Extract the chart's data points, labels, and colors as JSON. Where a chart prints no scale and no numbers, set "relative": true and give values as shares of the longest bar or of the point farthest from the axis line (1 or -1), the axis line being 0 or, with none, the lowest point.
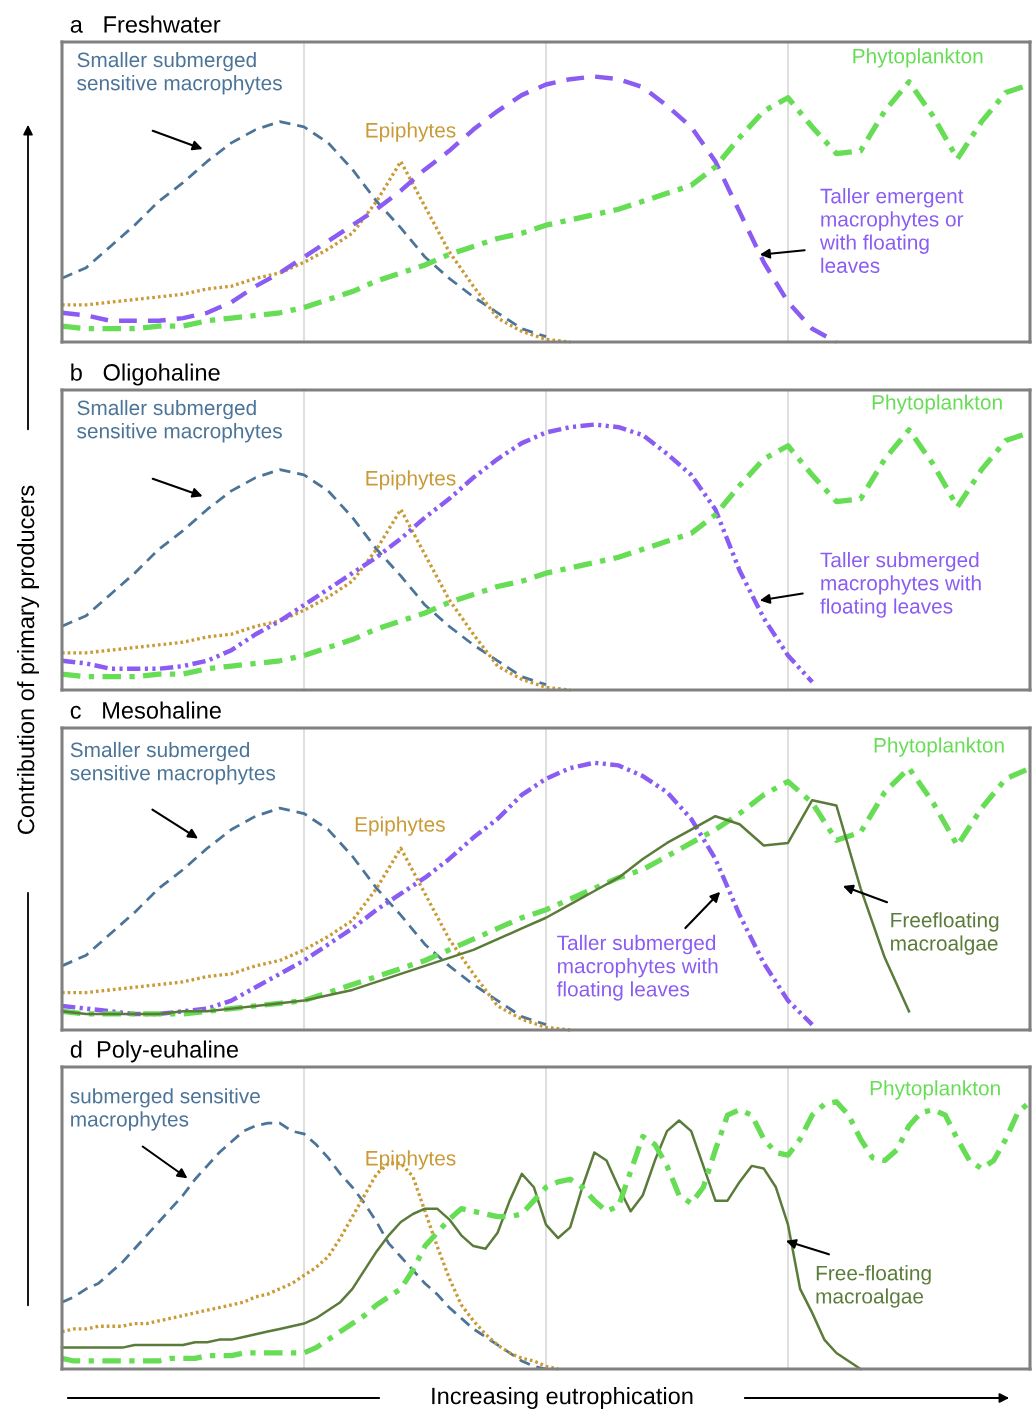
{
  "chart_data": [
    {
      "type": "line",
      "title": "a   Freshwater",
      "relative": true,
      "grid": "x",
      "tick_labels": false,
      "legend": false,
      "categories": [
        null,
        null,
        null,
        null,
        null,
        null,
        null,
        null,
        null,
        null,
        null,
        null,
        null,
        null,
        null,
        null,
        null,
        null,
        null,
        null,
        null,
        null,
        null,
        null,
        null,
        null,
        null,
        null,
        null,
        null,
        null,
        null,
        null,
        null,
        null,
        null,
        null,
        null,
        null,
        null,
        null
      ],
      "series": [
        {
          "name": "Smaller submerged\nsensitive macrophytes",
          "color": "#4b7498",
          "line_style": "dashed",
          "values": [
            0.24,
            0.28,
            0.36,
            0.44,
            0.53,
            0.6,
            0.68,
            0.75,
            0.8,
            0.83,
            0.81,
            0.75,
            0.65,
            0.53,
            0.43,
            0.32,
            0.24,
            0.17,
            0.11,
            0.05,
            0.02,
            null,
            null,
            null,
            null,
            null,
            null,
            null,
            null,
            null,
            null,
            null,
            null,
            null,
            null,
            null,
            null,
            null,
            null,
            null,
            null
          ]
        },
        {
          "name": "Epiphytes",
          "color": "#c99a35",
          "line_style": "dotted",
          "values": [
            0.14,
            0.14,
            0.15,
            0.16,
            0.17,
            0.18,
            0.2,
            0.21,
            0.24,
            0.26,
            0.3,
            0.35,
            0.41,
            0.53,
            0.68,
            0.51,
            0.34,
            0.21,
            0.09,
            0.04,
            0.01,
            0,
            null,
            null,
            null,
            null,
            null,
            null,
            null,
            null,
            null,
            null,
            null,
            null,
            null,
            null,
            null,
            null,
            null,
            null,
            null
          ]
        },
        {
          "name": "Taller emergent\nmacrophytes or\nwith floating\nleaves",
          "color": "#8a5cf2",
          "line_style": "dashed",
          "values": [
            0.11,
            0.1,
            0.08,
            0.08,
            0.08,
            0.09,
            0.11,
            0.15,
            0.21,
            0.26,
            0.32,
            0.38,
            0.44,
            0.5,
            0.57,
            0.65,
            0.72,
            0.8,
            0.87,
            0.93,
            0.97,
            0.99,
            1,
            0.99,
            0.96,
            0.89,
            0.81,
            0.68,
            0.49,
            0.3,
            0.15,
            0.05,
            0,
            null,
            null,
            null,
            null,
            null,
            null,
            null,
            null
          ]
        },
        {
          "name": "Phytoplankton",
          "color": "#66dd55",
          "line_style": "dashdot",
          "values": [
            0.06,
            0.05,
            0.05,
            0.05,
            0.06,
            0.06,
            0.08,
            0.09,
            0.1,
            0.11,
            0.13,
            0.16,
            0.19,
            0.23,
            0.26,
            0.29,
            0.33,
            0.36,
            0.39,
            0.41,
            0.44,
            0.46,
            0.48,
            0.5,
            0.53,
            0.56,
            0.59,
            0.66,
            0.77,
            0.87,
            0.92,
            0.81,
            0.71,
            0.72,
            0.87,
            0.98,
            0.85,
            0.69,
            0.83,
            0.94,
            0.97
          ]
        }
      ]
    },
    {
      "type": "line",
      "title": "b   Oligohaline",
      "ylabel": "Contribution of primary producers",
      "relative": true,
      "grid": "x",
      "tick_labels": false,
      "legend": false,
      "categories": [
        null,
        null,
        null,
        null,
        null,
        null,
        null,
        null,
        null,
        null,
        null,
        null,
        null,
        null,
        null,
        null,
        null,
        null,
        null,
        null,
        null,
        null,
        null,
        null,
        null,
        null,
        null,
        null,
        null,
        null,
        null,
        null,
        null,
        null,
        null,
        null,
        null,
        null,
        null,
        null,
        null
      ],
      "series": [
        {
          "name": "Smaller submerged\nsensitive macrophytes",
          "color": "#4b7498",
          "line_style": "dashed",
          "values": [
            0.24,
            0.28,
            0.36,
            0.44,
            0.53,
            0.6,
            0.68,
            0.75,
            0.8,
            0.83,
            0.81,
            0.75,
            0.65,
            0.53,
            0.43,
            0.32,
            0.24,
            0.17,
            0.11,
            0.05,
            0.02,
            null,
            null,
            null,
            null,
            null,
            null,
            null,
            null,
            null,
            null,
            null,
            null,
            null,
            null,
            null,
            null,
            null,
            null,
            null,
            null
          ]
        },
        {
          "name": "Epiphytes",
          "color": "#c99a35",
          "line_style": "dotted",
          "values": [
            0.14,
            0.14,
            0.15,
            0.16,
            0.17,
            0.18,
            0.2,
            0.21,
            0.24,
            0.26,
            0.3,
            0.35,
            0.41,
            0.53,
            0.68,
            0.51,
            0.34,
            0.21,
            0.09,
            0.04,
            0.01,
            0,
            null,
            null,
            null,
            null,
            null,
            null,
            null,
            null,
            null,
            null,
            null,
            null,
            null,
            null,
            null,
            null,
            null,
            null,
            null
          ]
        },
        {
          "name": "Taller submerged\nmacrophytes with\nfloating leaves",
          "color": "#8a5cf2",
          "line_style": "dashdotdot",
          "values": [
            0.11,
            0.1,
            0.08,
            0.08,
            0.08,
            0.09,
            0.11,
            0.15,
            0.21,
            0.26,
            0.32,
            0.38,
            0.44,
            0.5,
            0.57,
            0.65,
            0.72,
            0.8,
            0.87,
            0.93,
            0.97,
            0.99,
            1,
            0.99,
            0.96,
            0.89,
            0.81,
            0.68,
            0.45,
            0.27,
            0.13,
            0.03,
            null,
            null,
            null,
            null,
            null,
            null,
            null,
            null,
            null
          ]
        },
        {
          "name": "Phytoplankton",
          "color": "#66dd55",
          "line_style": "dashdot",
          "values": [
            0.06,
            0.05,
            0.05,
            0.05,
            0.06,
            0.06,
            0.08,
            0.09,
            0.1,
            0.11,
            0.13,
            0.16,
            0.19,
            0.23,
            0.26,
            0.29,
            0.33,
            0.36,
            0.39,
            0.41,
            0.44,
            0.46,
            0.48,
            0.5,
            0.53,
            0.56,
            0.59,
            0.66,
            0.77,
            0.87,
            0.92,
            0.81,
            0.71,
            0.72,
            0.87,
            0.98,
            0.85,
            0.69,
            0.83,
            0.94,
            0.97
          ]
        }
      ]
    },
    {
      "type": "line",
      "title": "c   Mesohaline",
      "relative": true,
      "grid": "x",
      "tick_labels": false,
      "legend": false,
      "categories": [
        null,
        null,
        null,
        null,
        null,
        null,
        null,
        null,
        null,
        null,
        null,
        null,
        null,
        null,
        null,
        null,
        null,
        null,
        null,
        null,
        null,
        null,
        null,
        null,
        null,
        null,
        null,
        null,
        null,
        null,
        null,
        null,
        null,
        null,
        null,
        null,
        null,
        null,
        null,
        null,
        null
      ],
      "series": [
        {
          "name": "Smaller submerged\nsensitive macrophytes",
          "color": "#4b7498",
          "line_style": "dashed",
          "values": [
            0.24,
            0.28,
            0.36,
            0.44,
            0.53,
            0.6,
            0.68,
            0.75,
            0.8,
            0.83,
            0.81,
            0.75,
            0.65,
            0.53,
            0.43,
            0.32,
            0.24,
            0.17,
            0.11,
            0.05,
            0.02,
            null,
            null,
            null,
            null,
            null,
            null,
            null,
            null,
            null,
            null,
            null,
            null,
            null,
            null,
            null,
            null,
            null,
            null,
            null,
            null
          ]
        },
        {
          "name": "Epiphytes",
          "color": "#c99a35",
          "line_style": "dotted",
          "values": [
            0.14,
            0.14,
            0.15,
            0.16,
            0.17,
            0.18,
            0.2,
            0.21,
            0.24,
            0.26,
            0.3,
            0.35,
            0.41,
            0.53,
            0.68,
            0.51,
            0.34,
            0.21,
            0.09,
            0.04,
            0.01,
            0,
            null,
            null,
            null,
            null,
            null,
            null,
            null,
            null,
            null,
            null,
            null,
            null,
            null,
            null,
            null,
            null,
            null,
            null,
            null
          ]
        },
        {
          "name": "Taller submerged\nmacrophytes with\nfloating leaves",
          "color": "#8a5cf2",
          "line_style": "dashdotdot",
          "values": [
            0.09,
            0.08,
            0.07,
            0.06,
            0.06,
            0.07,
            0.08,
            0.11,
            0.16,
            0.21,
            0.26,
            0.32,
            0.38,
            0.45,
            0.51,
            0.57,
            0.64,
            0.72,
            0.79,
            0.88,
            0.94,
            0.98,
            1,
            0.99,
            0.95,
            0.89,
            0.79,
            0.64,
            0.43,
            0.25,
            0.11,
            0.02,
            null,
            null,
            null,
            null,
            null,
            null,
            null,
            null,
            null
          ]
        },
        {
          "name": "Phytoplankton",
          "color": "#66dd55",
          "line_style": "dashdot",
          "values": [
            0.07,
            0.06,
            0.06,
            0.06,
            0.06,
            0.06,
            0.07,
            0.08,
            0.09,
            0.1,
            0.11,
            0.14,
            0.17,
            0.2,
            0.23,
            0.26,
            0.3,
            0.34,
            0.38,
            0.42,
            0.45,
            0.49,
            0.53,
            0.57,
            0.6,
            0.65,
            0.7,
            0.75,
            0.81,
            0.88,
            0.93,
            0.85,
            0.71,
            0.74,
            0.89,
            0.98,
            0.85,
            0.69,
            0.83,
            0.94,
            0.98
          ]
        },
        {
          "name": "Freefloating\nmacroalgae",
          "color": "#5b7b3a",
          "line_style": "solid",
          "values": [
            0.07,
            0.06,
            0.06,
            0.06,
            0.06,
            0.07,
            0.07,
            0.08,
            0.09,
            0.1,
            0.11,
            0.13,
            0.15,
            0.18,
            0.21,
            0.24,
            0.27,
            0.3,
            0.34,
            0.38,
            0.42,
            0.47,
            0.52,
            0.57,
            0.64,
            0.7,
            0.75,
            0.8,
            0.77,
            0.69,
            0.7,
            0.86,
            0.84,
            0.53,
            0.27,
            0.07,
            null,
            null,
            null,
            null,
            null
          ]
        }
      ]
    },
    {
      "type": "line",
      "title": "d  Poly-euhaline",
      "relative": true,
      "grid": "x",
      "tick_labels": false,
      "legend": false,
      "xlabel": "Increasing eutrophication",
      "categories": [
        null,
        null,
        null,
        null,
        null,
        null,
        null,
        null,
        null,
        null,
        null,
        null,
        null,
        null,
        null,
        null,
        null,
        null,
        null,
        null,
        null,
        null,
        null,
        null,
        null,
        null,
        null,
        null,
        null,
        null,
        null,
        null,
        null,
        null,
        null,
        null,
        null,
        null,
        null,
        null,
        null,
        null,
        null,
        null,
        null,
        null,
        null,
        null,
        null,
        null,
        null,
        null,
        null,
        null,
        null,
        null,
        null,
        null,
        null,
        null,
        null,
        null,
        null,
        null,
        null,
        null,
        null,
        null,
        null,
        null,
        null,
        null,
        null,
        null,
        null,
        null,
        null,
        null,
        null,
        null,
        null
      ],
      "series": [
        {
          "name": "submerged sensitive\nmacrophytes",
          "color": "#4b7498",
          "line_style": "dashed",
          "values": [
            0.25,
            0.27,
            0.3,
            0.32,
            0.36,
            0.4,
            0.45,
            0.5,
            0.55,
            0.6,
            0.65,
            0.71,
            0.76,
            0.81,
            0.85,
            0.89,
            0.91,
            0.92,
            0.92,
            0.89,
            0.88,
            0.84,
            0.79,
            0.73,
            0.68,
            0.62,
            0.55,
            0.47,
            0.42,
            0.37,
            0.32,
            0.28,
            0.23,
            0.19,
            0.15,
            0.12,
            0.09,
            0.06,
            0.03,
            0.01,
            0,
            null,
            null,
            null,
            null,
            null,
            null,
            null,
            null,
            null,
            null,
            null,
            null,
            null,
            null,
            null,
            null,
            null,
            null,
            null,
            null,
            null,
            null,
            null,
            null,
            null,
            null,
            null,
            null,
            null,
            null,
            null,
            null,
            null,
            null,
            null,
            null,
            null,
            null,
            null,
            null
          ]
        },
        {
          "name": "Epiphytes",
          "color": "#c99a35",
          "line_style": "dotted",
          "values": [
            0.14,
            0.15,
            0.15,
            0.16,
            0.16,
            0.16,
            0.17,
            0.17,
            0.18,
            0.19,
            0.2,
            0.21,
            0.22,
            0.23,
            0.24,
            0.25,
            0.27,
            0.28,
            0.3,
            0.32,
            0.35,
            0.38,
            0.42,
            0.49,
            0.57,
            0.65,
            0.73,
            0.77,
            0.77,
            0.72,
            0.59,
            0.46,
            0.34,
            0.24,
            0.18,
            0.13,
            0.09,
            0.06,
            0.04,
            0.03,
            0.01,
            0,
            null,
            null,
            null,
            null,
            null,
            null,
            null,
            null,
            null,
            null,
            null,
            null,
            null,
            null,
            null,
            null,
            null,
            null,
            null,
            null,
            null,
            null,
            null,
            null,
            null,
            null,
            null,
            null,
            null,
            null,
            null,
            null,
            null,
            null,
            null,
            null,
            null,
            null,
            null
          ]
        },
        {
          "name": "Free-floating\nmacroalgae",
          "color": "#5b7b3a",
          "line_style": "solid",
          "values": [
            0.08,
            0.08,
            0.08,
            0.08,
            0.08,
            0.08,
            0.09,
            0.09,
            0.09,
            0.09,
            0.09,
            0.1,
            0.1,
            0.11,
            0.11,
            0.12,
            0.13,
            0.14,
            0.15,
            0.16,
            0.17,
            0.19,
            0.22,
            0.25,
            0.3,
            0.37,
            0.44,
            0.5,
            0.55,
            0.58,
            0.6,
            0.6,
            0.56,
            0.5,
            0.46,
            0.45,
            0.51,
            0.63,
            0.73,
            0.68,
            0.54,
            0.49,
            0.53,
            0.68,
            0.81,
            0.78,
            0.68,
            0.59,
            0.65,
            0.78,
            0.89,
            0.93,
            0.89,
            0.76,
            0.63,
            0.63,
            0.7,
            0.76,
            0.75,
            0.68,
            0.54,
            0.3,
            0.21,
            0.11,
            0.06,
            0.03,
            0,
            null,
            null,
            null,
            null,
            null,
            null,
            null,
            null,
            null,
            null,
            null,
            null,
            null,
            null
          ]
        },
        {
          "name": "Phytoplankton",
          "color": "#66dd55",
          "line_style": "dashdot",
          "values": [
            0.04,
            0.03,
            0.03,
            0.03,
            0.03,
            0.03,
            0.03,
            0.03,
            0.03,
            0.04,
            0.04,
            0.04,
            0.05,
            0.05,
            0.05,
            0.06,
            0.06,
            0.06,
            0.06,
            0.06,
            0.06,
            0.08,
            0.11,
            0.14,
            0.17,
            0.2,
            0.24,
            0.27,
            0.3,
            0.37,
            0.46,
            0.51,
            0.56,
            0.6,
            0.59,
            0.58,
            0.57,
            0.57,
            0.58,
            0.63,
            0.68,
            0.7,
            0.71,
            0.68,
            0.63,
            0.59,
            0.61,
            0.74,
            0.87,
            0.84,
            0.76,
            0.65,
            0.62,
            0.68,
            0.82,
            0.95,
            0.97,
            0.95,
            0.86,
            0.81,
            0.8,
            0.86,
            0.95,
            0.99,
            1,
            0.95,
            0.86,
            0.79,
            0.78,
            0.82,
            0.91,
            0.96,
            0.97,
            0.95,
            0.86,
            0.78,
            0.75,
            0.78,
            0.86,
            0.96,
            1
          ]
        }
      ]
    }
  ]
}
